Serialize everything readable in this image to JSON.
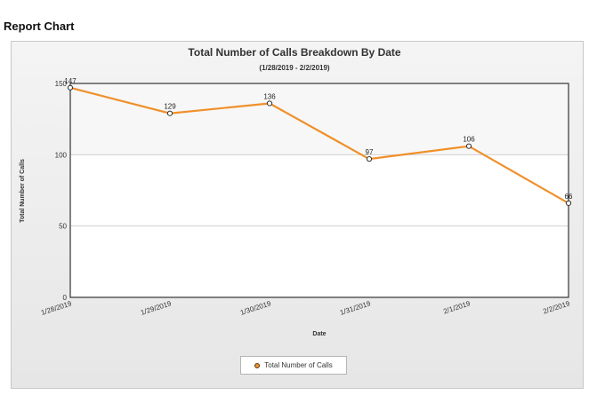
{
  "page": {
    "heading": "Report Chart"
  },
  "chart_data": {
    "type": "line",
    "title": "Total Number of Calls Breakdown By Date",
    "subtitle": "(1/28/2019 - 2/2/2019)",
    "xlabel": "Date",
    "ylabel": "Total Number of Calls",
    "categories": [
      "1/28/2019",
      "1/29/2019",
      "1/30/2019",
      "1/31/2019",
      "2/1/2019",
      "2/2/2019"
    ],
    "series": [
      {
        "name": "Total Number of Calls",
        "values": [
          147,
          129,
          136,
          97,
          106,
          66
        ],
        "color": "#f0902a"
      }
    ],
    "data_labels": [
      "147",
      "129",
      "136",
      "97",
      "106",
      "66"
    ],
    "y_ticks": [
      0,
      50,
      100,
      150
    ],
    "ylim": [
      0,
      150
    ],
    "grid": true,
    "legend_position": "bottom-center"
  }
}
